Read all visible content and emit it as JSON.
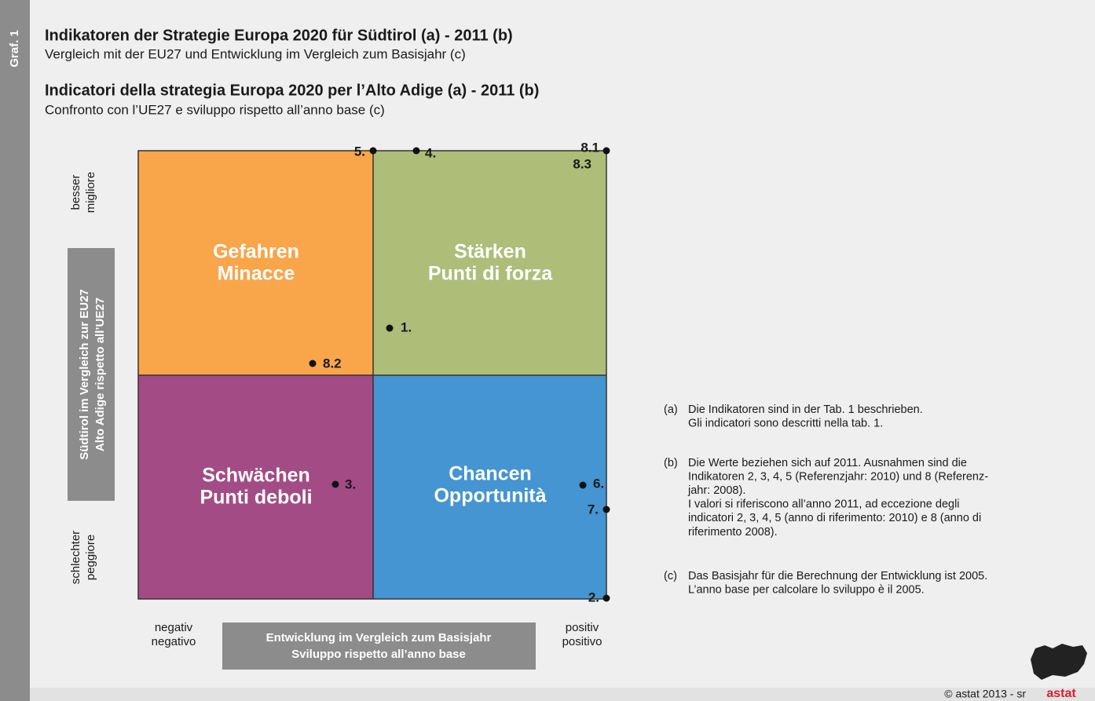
{
  "badge": "Graf. 1",
  "titles": [
    {
      "title": "Indikatoren der Strategie Europa 2020 für Südtirol (a) - 2011 (b)",
      "subtitle": "Vergleich mit der EU27 und Entwicklung im Vergleich zum Basisjahr (c)"
    },
    {
      "title": "Indicatori della strategia Europa 2020 per l’Alto Adige (a) - 2011 (b)",
      "subtitle": "Confronto con l’UE27 e sviluppo rispetto all’anno base (c)"
    }
  ],
  "quadrants": [
    {
      "lines": [
        "Gefahren",
        "Minacce"
      ]
    },
    {
      "lines": [
        "Stärken",
        "Punti di forza"
      ]
    },
    {
      "lines": [
        "Schwächen",
        "Punti deboli"
      ]
    },
    {
      "lines": [
        "Chancen",
        "Opportunità"
      ]
    }
  ],
  "points": [
    "5.",
    "4.",
    "8.1",
    "8.3",
    "1.",
    "8.2",
    "3.",
    "6.",
    "7.",
    "2."
  ],
  "y_axis": {
    "top": [
      "besser",
      "migliore"
    ],
    "label": [
      "Südtirol im Vergleich zur EU27",
      "Alto Adige rispetto all’UE27"
    ],
    "bottom": [
      "schlechter",
      "peggiore"
    ]
  },
  "x_axis": {
    "left": [
      "negativ",
      "negativo"
    ],
    "label": [
      "Entwicklung im Vergleich zum Basisjahr",
      "Sviluppo rispetto all’anno base"
    ],
    "right": [
      "positiv",
      "positivo"
    ]
  },
  "notes": [
    {
      "marker": "(a)",
      "lines": [
        "Die Indikatoren sind in der Tab. 1 beschrieben.",
        "Gli indicatori sono descritti nella tab. 1."
      ]
    },
    {
      "marker": "(b)",
      "lines": [
        "Die Werte beziehen sich auf 2011. Ausnahmen sind die",
        "Indikatoren 2, 3, 4, 5 (Referenzjahr: 2010) und 8 (Referenz-",
        "jahr: 2008).",
        "I valori si riferiscono all’anno 2011, ad eccezione degli",
        "indicatori 2, 3, 4, 5 (anno di riferimento: 2010) e 8 (anno di",
        "riferimento 2008)."
      ]
    },
    {
      "marker": "(c)",
      "lines": [
        "Das Basisjahr für die Berechnung der Entwicklung ist 2005.",
        "L’anno base per calcolare lo sviluppo è il 2005."
      ]
    }
  ],
  "footer": "©  astat 2013 - sr",
  "logo": "astat"
}
